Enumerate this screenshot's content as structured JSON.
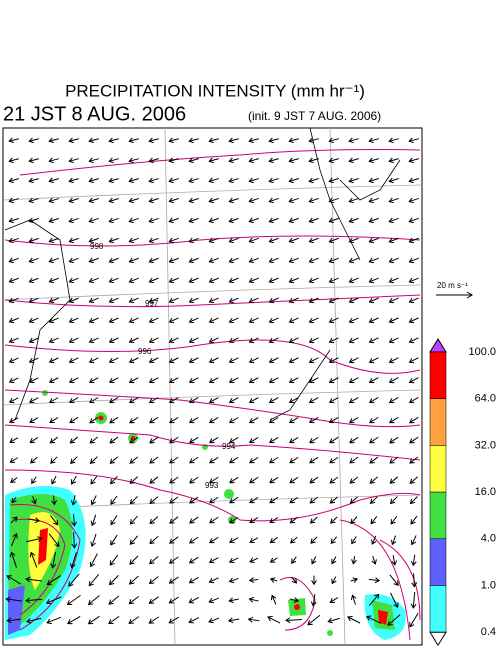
{
  "header": {
    "title": "PRECIPITATION INTENSITY (mm hr⁻¹)",
    "valid_time": "21 JST 8 AUG. 2006",
    "init_time": "(init. 9 JST 7 AUG. 2006)"
  },
  "wind_scale": {
    "label": "20 m s⁻¹"
  },
  "legend": {
    "levels": [
      "100.0",
      "64.0",
      "32.0",
      "16.0",
      "4.0",
      "1.0",
      "0.4"
    ],
    "colors": [
      "#ff0000",
      "#ffa040",
      "#ffff40",
      "#40e040",
      "#6060ff",
      "#40ffff"
    ],
    "over_color": "#c040ff",
    "under_color": "#ffffff"
  },
  "isobars": {
    "labels": [
      "998",
      "997",
      "996",
      "994",
      "993"
    ]
  }
}
